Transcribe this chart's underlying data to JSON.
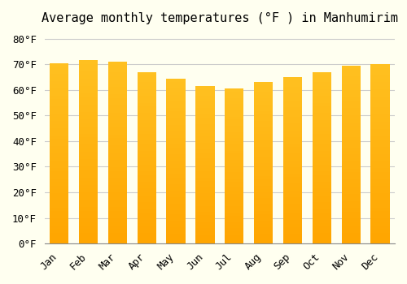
{
  "title": "Average monthly temperatures (°F ) in Manhumirim",
  "months": [
    "Jan",
    "Feb",
    "Mar",
    "Apr",
    "May",
    "Jun",
    "Jul",
    "Aug",
    "Sep",
    "Oct",
    "Nov",
    "Dec"
  ],
  "values": [
    70.5,
    71.5,
    71.0,
    67.0,
    64.5,
    61.5,
    60.5,
    63.0,
    65.0,
    67.0,
    69.5,
    70.0
  ],
  "bar_color_top": "#FFC020",
  "bar_color_bottom": "#FFA500",
  "background_color": "#FFFFF0",
  "grid_color": "#CCCCCC",
  "yticks": [
    0,
    10,
    20,
    30,
    40,
    50,
    60,
    70,
    80
  ],
  "ylim": [
    0,
    83
  ],
  "title_fontsize": 11,
  "tick_fontsize": 9,
  "font_family": "monospace"
}
